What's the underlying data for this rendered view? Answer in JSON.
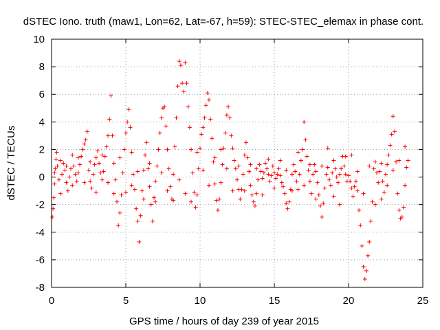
{
  "chart_data": {
    "type": "scatter",
    "title": "dSTEC Iono. truth (maw1, Lon=62, Lat=-67, h=59): STEC-STEC_elemax in phase cont.",
    "xlabel": "GPS time / hours of day 239 of year 2015",
    "ylabel": "dSTEC  / TECUs",
    "xlim": [
      0,
      25
    ],
    "ylim": [
      -8,
      10
    ],
    "xticks": [
      0,
      5,
      10,
      15,
      20,
      25
    ],
    "yticks": [
      -8,
      -6,
      -4,
      -2,
      0,
      2,
      4,
      6,
      8,
      10
    ],
    "grid": true,
    "marker": "+",
    "color": "#ff0000",
    "series": [
      {
        "name": "",
        "points": [
          [
            0.05,
            -2.9
          ],
          [
            0.1,
            -2.3
          ],
          [
            0.15,
            -1.5
          ],
          [
            0.2,
            -0.5
          ],
          [
            0.25,
            0.6
          ],
          [
            0.3,
            1.3
          ],
          [
            0.35,
            1.8
          ],
          [
            0.4,
            0.8
          ],
          [
            0.5,
            -0.2
          ],
          [
            0.6,
            -1.2
          ],
          [
            0.7,
            0.2
          ],
          [
            0.8,
            1.0
          ],
          [
            0.9,
            0.5
          ],
          [
            1.0,
            -0.4
          ],
          [
            1.1,
            -1.0
          ],
          [
            1.2,
            0.0
          ],
          [
            1.3,
            0.6
          ],
          [
            1.4,
            1.6
          ],
          [
            1.5,
            0.8
          ],
          [
            1.6,
            0.2
          ],
          [
            1.7,
            -0.3
          ],
          [
            1.8,
            0.3
          ],
          [
            1.9,
            0.9
          ],
          [
            2.0,
            1.5
          ],
          [
            2.1,
            2.0
          ],
          [
            2.2,
            2.4
          ],
          [
            2.3,
            2.7
          ],
          [
            2.4,
            3.3
          ],
          [
            2.5,
            0.5
          ],
          [
            2.6,
            -0.3
          ],
          [
            2.7,
            -0.8
          ],
          [
            2.8,
            0.2
          ],
          [
            2.9,
            0.9
          ],
          [
            3.0,
            1.4
          ],
          [
            3.1,
            1.9
          ],
          [
            3.2,
            1.0
          ],
          [
            3.3,
            0.3
          ],
          [
            3.4,
            -0.2
          ],
          [
            3.5,
            0.4
          ],
          [
            3.6,
            1.5
          ],
          [
            3.7,
            2.2
          ],
          [
            3.8,
            3.0
          ],
          [
            3.9,
            4.2
          ],
          [
            4.0,
            5.9
          ],
          [
            4.1,
            3.0
          ],
          [
            4.2,
            1.0
          ],
          [
            4.3,
            -0.2
          ],
          [
            4.4,
            -1.8
          ],
          [
            4.5,
            -3.5
          ],
          [
            4.6,
            -2.6
          ],
          [
            4.7,
            -1.3
          ],
          [
            4.8,
            0.3
          ],
          [
            4.9,
            2.0
          ],
          [
            5.0,
            3.2
          ],
          [
            5.1,
            4.0
          ],
          [
            5.2,
            4.9
          ],
          [
            5.3,
            3.6
          ],
          [
            5.4,
            1.8
          ],
          [
            5.5,
            0.2
          ],
          [
            5.6,
            -0.9
          ],
          [
            5.7,
            -2.3
          ],
          [
            5.8,
            -3.2
          ],
          [
            5.9,
            -4.7
          ],
          [
            6.0,
            -2.8
          ],
          [
            6.1,
            -1.0
          ],
          [
            6.2,
            0.5
          ],
          [
            6.3,
            1.6
          ],
          [
            6.4,
            2.5
          ],
          [
            6.5,
            0.6
          ],
          [
            6.6,
            -0.7
          ],
          [
            6.7,
            -2.0
          ],
          [
            6.8,
            -3.2
          ],
          [
            6.9,
            -1.5
          ],
          [
            7.0,
            -0.3
          ],
          [
            7.1,
            0.8
          ],
          [
            7.2,
            2.0
          ],
          [
            7.3,
            3.2
          ],
          [
            7.4,
            4.3
          ],
          [
            7.5,
            5.0
          ],
          [
            7.6,
            5.1
          ],
          [
            7.7,
            3.7
          ],
          [
            7.8,
            2.0
          ],
          [
            7.9,
            0.6
          ],
          [
            8.0,
            -0.7
          ],
          [
            8.1,
            -1.6
          ],
          [
            8.2,
            0.2
          ],
          [
            8.3,
            2.2
          ],
          [
            8.4,
            4.3
          ],
          [
            8.5,
            6.6
          ],
          [
            8.6,
            8.4
          ],
          [
            8.7,
            8.1
          ],
          [
            8.8,
            6.8
          ],
          [
            8.9,
            6.2
          ],
          [
            9.0,
            8.3
          ],
          [
            9.1,
            6.8
          ],
          [
            9.2,
            5.1
          ],
          [
            9.3,
            3.6
          ],
          [
            9.4,
            2.0
          ],
          [
            9.5,
            0.3
          ],
          [
            9.6,
            -1.1
          ],
          [
            9.7,
            -2.2
          ],
          [
            9.8,
            -1.3
          ],
          [
            9.9,
            0.6
          ],
          [
            10.0,
            2.1
          ],
          [
            10.1,
            3.1
          ],
          [
            10.2,
            3.6
          ],
          [
            10.3,
            4.3
          ],
          [
            10.4,
            5.2
          ],
          [
            10.5,
            6.1
          ],
          [
            10.6,
            5.6
          ],
          [
            10.7,
            4.2
          ],
          [
            10.8,
            2.8
          ],
          [
            10.9,
            1.1
          ],
          [
            11.0,
            -0.5
          ],
          [
            11.1,
            -1.7
          ],
          [
            11.2,
            -2.4
          ],
          [
            11.3,
            -1.6
          ],
          [
            11.4,
            -0.4
          ],
          [
            11.5,
            0.9
          ],
          [
            11.6,
            2.1
          ],
          [
            11.7,
            3.2
          ],
          [
            11.8,
            4.5
          ],
          [
            11.9,
            5.1
          ],
          [
            12.0,
            4.3
          ],
          [
            12.1,
            3.0
          ],
          [
            12.2,
            2.1
          ],
          [
            12.3,
            1.2
          ],
          [
            12.4,
            0.6
          ],
          [
            12.5,
            -0.2
          ],
          [
            12.6,
            -0.9
          ],
          [
            12.7,
            -1.6
          ],
          [
            12.8,
            -0.9
          ],
          [
            12.9,
            0.2
          ],
          [
            13.0,
            1.6
          ],
          [
            13.1,
            2.5
          ],
          [
            13.2,
            1.4
          ],
          [
            13.3,
            0.4
          ],
          [
            13.4,
            -0.6
          ],
          [
            13.5,
            -1.3
          ],
          [
            13.6,
            -1.8
          ],
          [
            13.7,
            -2.1
          ],
          [
            13.8,
            -1.2
          ],
          [
            13.9,
            -0.2
          ],
          [
            14.0,
            0.9
          ],
          [
            14.1,
            0.4
          ],
          [
            14.2,
            -0.1
          ],
          [
            14.3,
            0.3
          ],
          [
            14.4,
            1.0
          ],
          [
            14.5,
            0.6
          ],
          [
            14.6,
            0.2
          ],
          [
            14.7,
            -0.3
          ],
          [
            14.8,
            0.1
          ],
          [
            14.9,
            0.8
          ],
          [
            15.0,
            0.3
          ],
          [
            15.1,
            -0.1
          ],
          [
            15.2,
            0.2
          ],
          [
            15.3,
            0.6
          ],
          [
            15.4,
            0.1
          ],
          [
            15.5,
            -0.4
          ],
          [
            15.6,
            -0.7
          ],
          [
            15.7,
            -1.2
          ],
          [
            15.8,
            -1.9
          ],
          [
            15.9,
            -2.3
          ],
          [
            16.0,
            -1.8
          ],
          [
            16.1,
            -0.9
          ],
          [
            16.2,
            0.2
          ],
          [
            16.3,
            0.9
          ],
          [
            16.4,
            0.4
          ],
          [
            16.5,
            -0.3
          ],
          [
            16.6,
            -0.9
          ],
          [
            16.7,
            0.2
          ],
          [
            16.8,
            1.2
          ],
          [
            16.9,
            2.0
          ],
          [
            17.0,
            4.0
          ],
          [
            17.1,
            2.7
          ],
          [
            17.2,
            1.5
          ],
          [
            17.3,
            0.5
          ],
          [
            17.4,
            -0.3
          ],
          [
            17.5,
            -1.2
          ],
          [
            17.6,
            0.2
          ],
          [
            17.7,
            0.9
          ],
          [
            17.8,
            0.4
          ],
          [
            17.9,
            -0.4
          ],
          [
            18.0,
            -1.3
          ],
          [
            18.1,
            -2.1
          ],
          [
            18.2,
            -2.9
          ],
          [
            18.3,
            -1.9
          ],
          [
            18.4,
            -0.8
          ],
          [
            18.5,
            0.2
          ],
          [
            18.6,
            0.7
          ],
          [
            18.7,
            -0.2
          ],
          [
            18.8,
            -0.6
          ],
          [
            18.9,
            0.3
          ],
          [
            19.0,
            1.2
          ],
          [
            19.1,
            0.6
          ],
          [
            19.2,
            0.0
          ],
          [
            19.3,
            -0.4
          ],
          [
            19.4,
            0.2
          ],
          [
            19.5,
            0.6
          ],
          [
            19.6,
            1.5
          ],
          [
            19.7,
            0.8
          ],
          [
            19.8,
            0.2
          ],
          [
            19.9,
            -0.3
          ],
          [
            20.0,
            0.1
          ],
          [
            20.1,
            -0.3
          ],
          [
            20.2,
            -0.8
          ],
          [
            20.3,
            -1.4
          ],
          [
            20.4,
            -0.7
          ],
          [
            20.5,
            -0.3
          ],
          [
            20.6,
            -1.0
          ],
          [
            20.7,
            -2.4
          ],
          [
            20.8,
            -3.5
          ],
          [
            20.9,
            -5.0
          ],
          [
            21.0,
            -6.5
          ],
          [
            21.1,
            -7.4
          ],
          [
            21.2,
            -6.8
          ],
          [
            21.3,
            -5.7
          ],
          [
            21.4,
            -4.7
          ],
          [
            21.5,
            -3.2
          ],
          [
            21.6,
            -1.8
          ],
          [
            21.7,
            0.6
          ],
          [
            21.8,
            1.1
          ],
          [
            21.9,
            0.3
          ],
          [
            22.0,
            -0.4
          ],
          [
            22.1,
            0.4
          ],
          [
            22.2,
            1.0
          ],
          [
            22.3,
            -0.3
          ],
          [
            22.4,
            -1.1
          ],
          [
            22.5,
            0.2
          ],
          [
            22.6,
            0.9
          ],
          [
            22.7,
            1.6
          ],
          [
            22.8,
            2.3
          ],
          [
            22.9,
            3.1
          ],
          [
            23.0,
            4.4
          ],
          [
            23.1,
            3.3
          ],
          [
            23.2,
            1.1
          ],
          [
            23.3,
            -1.2
          ],
          [
            23.4,
            -2.4
          ],
          [
            23.5,
            -3.0
          ],
          [
            23.6,
            -2.9
          ],
          [
            23.7,
            -2.2
          ],
          [
            23.8,
            -0.6
          ],
          [
            23.9,
            0.7
          ],
          [
            24.0,
            1.2
          ],
          [
            0.2,
            0.3
          ],
          [
            0.6,
            1.2
          ],
          [
            1.0,
            0.8
          ],
          [
            1.4,
            -0.6
          ],
          [
            1.8,
            1.4
          ],
          [
            2.2,
            -0.4
          ],
          [
            2.6,
            1.1
          ],
          [
            3.0,
            -1.1
          ],
          [
            3.4,
            1.6
          ],
          [
            3.8,
            -0.4
          ],
          [
            4.2,
            -1.2
          ],
          [
            4.6,
            1.4
          ],
          [
            5.0,
            -1.1
          ],
          [
            5.4,
            -0.6
          ],
          [
            5.8,
            0.4
          ],
          [
            6.2,
            -1.6
          ],
          [
            6.6,
            1.0
          ],
          [
            7.0,
            -1.8
          ],
          [
            7.4,
            0.3
          ],
          [
            7.8,
            -1.0
          ],
          [
            8.2,
            -1.7
          ],
          [
            8.6,
            -0.2
          ],
          [
            9.0,
            -1.2
          ],
          [
            9.4,
            -1.8
          ],
          [
            9.8,
            1.8
          ],
          [
            10.2,
            0.5
          ],
          [
            10.6,
            -0.6
          ],
          [
            11.0,
            1.4
          ],
          [
            11.4,
            2.0
          ],
          [
            11.8,
            0.6
          ],
          [
            12.2,
            -1.0
          ],
          [
            12.6,
            0.8
          ],
          [
            13.0,
            -1.0
          ],
          [
            13.4,
            0.9
          ],
          [
            13.8,
            0.6
          ],
          [
            14.2,
            -1.3
          ],
          [
            14.6,
            1.3
          ],
          [
            15.0,
            -0.8
          ],
          [
            15.4,
            1.2
          ],
          [
            15.8,
            0.5
          ],
          [
            16.2,
            -1.0
          ],
          [
            16.6,
            1.8
          ],
          [
            17.0,
            -0.6
          ],
          [
            17.4,
            0.9
          ],
          [
            17.8,
            -1.6
          ],
          [
            18.2,
            0.8
          ],
          [
            18.6,
            2.1
          ],
          [
            19.0,
            -1.4
          ],
          [
            19.4,
            -2.0
          ],
          [
            19.8,
            1.5
          ],
          [
            20.2,
            1.6
          ],
          [
            20.6,
            0.4
          ],
          [
            21.0,
            -1.2
          ],
          [
            21.4,
            0.8
          ],
          [
            21.8,
            -2.0
          ],
          [
            22.2,
            -1.6
          ],
          [
            22.6,
            -0.6
          ],
          [
            23.0,
            0.5
          ],
          [
            23.4,
            1.2
          ],
          [
            23.8,
            2.2
          ]
        ]
      }
    ]
  }
}
